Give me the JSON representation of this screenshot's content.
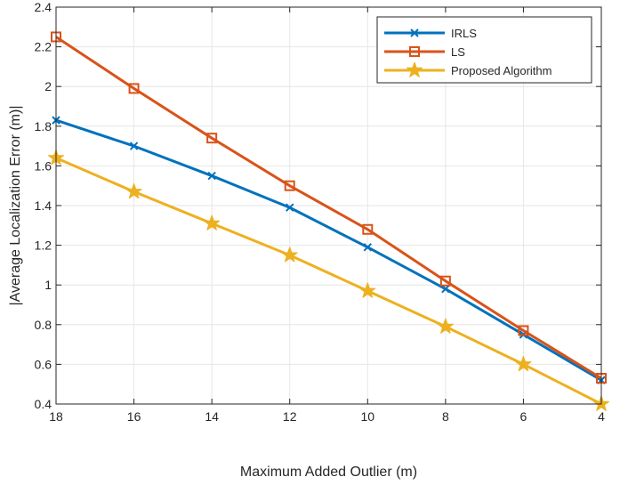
{
  "chart_data": {
    "type": "line",
    "title": "",
    "xlabel": "Maximum Added Outlier (m)",
    "ylabel": "|Average Localization Error (m)|",
    "x": [
      18,
      16,
      14,
      12,
      10,
      8,
      6,
      4
    ],
    "x_reversed": true,
    "xlim": [
      4,
      18
    ],
    "ylim": [
      0.4,
      2.4
    ],
    "xticks": [
      "18",
      "16",
      "14",
      "12",
      "10",
      "8",
      "6",
      "4"
    ],
    "yticks": [
      "0.4",
      "0.6",
      "0.8",
      "1",
      "1.2",
      "1.4",
      "1.6",
      "1.8",
      "2",
      "2.2",
      "2.4"
    ],
    "grid": true,
    "legend_position": "top-right",
    "series": [
      {
        "name": "IRLS",
        "color": "#0072BD",
        "marker": "x",
        "values": [
          1.83,
          1.7,
          1.55,
          1.39,
          1.19,
          0.98,
          0.75,
          0.52
        ]
      },
      {
        "name": "LS",
        "color": "#D95319",
        "marker": "square",
        "values": [
          2.25,
          1.99,
          1.74,
          1.5,
          1.28,
          1.02,
          0.77,
          0.53
        ]
      },
      {
        "name": "Proposed Algorithm",
        "color": "#EDB120",
        "marker": "star",
        "values": [
          1.64,
          1.47,
          1.31,
          1.15,
          0.97,
          0.79,
          0.6,
          0.4
        ]
      }
    ]
  }
}
